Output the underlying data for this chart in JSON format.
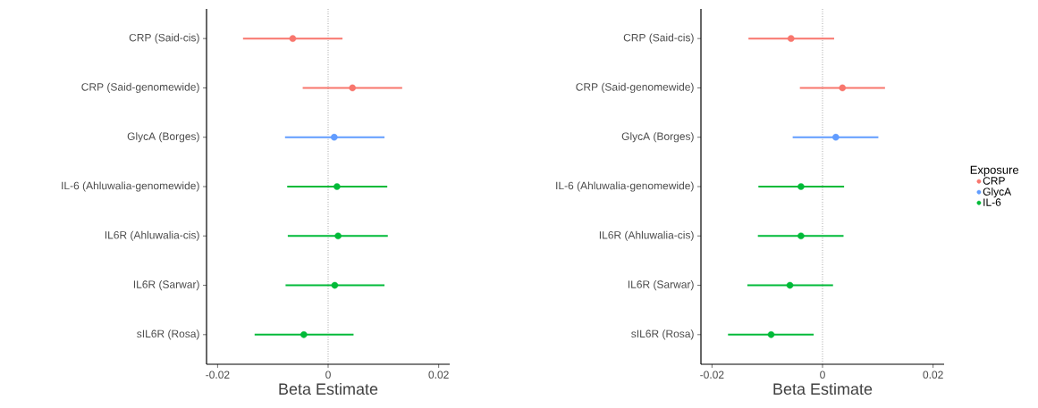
{
  "chart_data": [
    {
      "type": "scatter",
      "orientation": "horizontal",
      "categories": [
        "CRP (Said-cis)",
        "CRP (Said-genomewide)",
        "GlycA (Borges)",
        "IL-6 (Ahluwalia-genomewide)",
        "IL6R (Ahluwalia-cis)",
        "IL6R (Sarwar)",
        "sIL6R (Rosa)"
      ],
      "series": [
        {
          "color": "#f8766d",
          "values": [
            -0.0064,
            0.0044,
            null,
            null,
            null,
            null,
            null
          ],
          "errors": [
            [
              -0.0154,
              0.0026
            ],
            [
              -0.0046,
              0.0134
            ],
            null,
            null,
            null,
            null,
            null
          ]
        },
        {
          "color": "#619cff",
          "values": [
            null,
            null,
            0.0011,
            null,
            null,
            null,
            null
          ],
          "errors": [
            null,
            null,
            [
              -0.0078,
              0.0102
            ],
            null,
            null,
            null,
            null
          ]
        },
        {
          "color": "#00ba38",
          "values": [
            null,
            null,
            null,
            0.0016,
            0.0018,
            0.0012,
            -0.0044
          ],
          "errors": [
            null,
            null,
            null,
            [
              -0.0074,
              0.0107
            ],
            [
              -0.0073,
              0.0108
            ],
            [
              -0.0077,
              0.0102
            ],
            [
              -0.0133,
              0.0046
            ]
          ]
        }
      ],
      "xlim": [
        -0.022,
        0.022
      ],
      "xticks": [
        -0.02,
        0,
        0.02
      ],
      "xlabel": "Beta Estimate",
      "ref_lines": [
        {
          "axis": "x",
          "value": 0,
          "line_style": "dotted"
        }
      ]
    },
    {
      "type": "scatter",
      "orientation": "horizontal",
      "categories": [
        "CRP (Said-cis)",
        "CRP (Said-genomewide)",
        "GlycA (Borges)",
        "IL-6 (Ahluwalia-genomewide)",
        "IL6R (Ahluwalia-cis)",
        "IL6R (Sarwar)",
        "sIL6R (Rosa)"
      ],
      "series": [
        {
          "name": "CRP",
          "color": "#f8766d",
          "values": [
            -0.0057,
            0.0036,
            null,
            null,
            null,
            null,
            null
          ],
          "errors": [
            [
              -0.0134,
              0.0021
            ],
            [
              -0.0041,
              0.0113
            ],
            null,
            null,
            null,
            null,
            null
          ]
        },
        {
          "name": "GlycA",
          "color": "#619cff",
          "values": [
            null,
            null,
            0.0024,
            null,
            null,
            null,
            null
          ],
          "errors": [
            null,
            null,
            [
              -0.0054,
              0.0101
            ],
            null,
            null,
            null,
            null
          ]
        },
        {
          "name": "IL-6",
          "color": "#00ba38",
          "values": [
            null,
            null,
            null,
            -0.0039,
            -0.0039,
            -0.0059,
            -0.0093
          ],
          "errors": [
            null,
            null,
            null,
            [
              -0.0116,
              0.0039
            ],
            [
              -0.0117,
              0.0038
            ],
            [
              -0.0136,
              0.0019
            ],
            [
              -0.0171,
              -0.0016
            ]
          ]
        }
      ],
      "xlim": [
        -0.022,
        0.022
      ],
      "xticks": [
        -0.02,
        0,
        0.02
      ],
      "xlabel": "Beta Estimate",
      "legend": "right",
      "legend_title": "Exposure",
      "ref_lines": [
        {
          "axis": "x",
          "value": 0,
          "line_style": "dotted"
        }
      ]
    }
  ]
}
